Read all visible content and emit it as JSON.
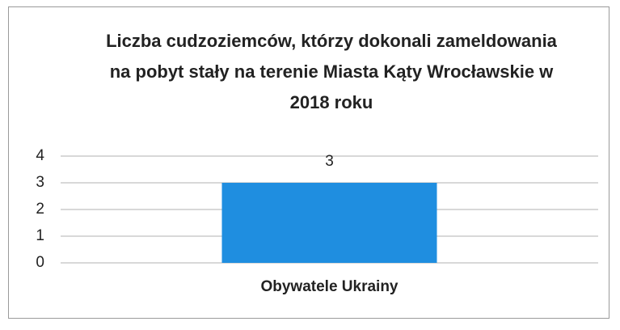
{
  "chart_data": {
    "type": "bar",
    "title": "Liczba cudzoziemców, którzy dokonali zameldowania na pobyt stały na terenie Miasta Kąty Wrocławskie w 2018 roku",
    "categories": [
      "Obywatele Ukrainy"
    ],
    "values": [
      3
    ],
    "color": "#1f8ee0",
    "ylim": [
      0,
      4
    ],
    "yticks": [
      0,
      1,
      2,
      3,
      4
    ],
    "grid": true
  }
}
